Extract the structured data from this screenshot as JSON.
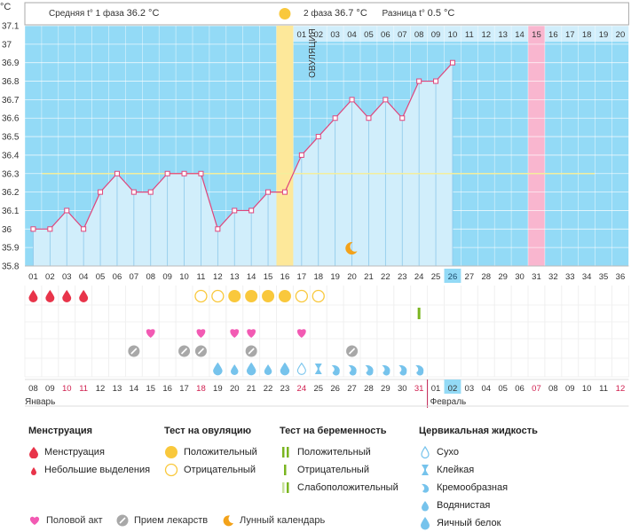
{
  "header": {
    "unit": "°C",
    "phase1_label": "Средняя t° 1 фаза",
    "phase1_value": "36.2 °C",
    "phase2_label": "2 фаза",
    "phase2_value": "36.7 °C",
    "diff_label": "Разница t°",
    "diff_value": "0.5 °C"
  },
  "ovulation_label": "ОВУЛЯЦИЯ",
  "chart_data": {
    "type": "line",
    "xlabel": "",
    "ylabel": "°C",
    "ylim": [
      35.8,
      37.1
    ],
    "y_ticks": [
      "37.1",
      "37",
      "36.9",
      "36.8",
      "36.7",
      "36.6",
      "36.5",
      "36.4",
      "36.3",
      "36.2",
      "36.1",
      "36",
      "35.9",
      "35.8"
    ],
    "cycle_days": [
      "01",
      "02",
      "03",
      "04",
      "05",
      "06",
      "07",
      "08",
      "09",
      "10",
      "11",
      "12",
      "13",
      "14",
      "15",
      "16",
      "17",
      "18",
      "19",
      "20",
      "21",
      "22",
      "23",
      "24",
      "25",
      "26",
      "27",
      "28",
      "29",
      "30",
      "31",
      "32",
      "33",
      "34",
      "35",
      "36"
    ],
    "temperatures": [
      36.0,
      36.0,
      36.1,
      36.0,
      36.2,
      36.3,
      36.2,
      36.2,
      36.3,
      36.3,
      36.3,
      36.0,
      36.1,
      36.1,
      36.2,
      36.2,
      36.4,
      36.5,
      36.6,
      36.7,
      36.6,
      36.7,
      36.6,
      36.8,
      36.8,
      36.9
    ],
    "coverline": 36.3,
    "ovulation_day": 16,
    "current_day": 26,
    "luteal_days": [
      "01",
      "02",
      "03",
      "04",
      "05",
      "06",
      "07",
      "08",
      "09",
      "10",
      "11",
      "12",
      "13",
      "14",
      "15",
      "16",
      "17",
      "18",
      "19",
      "20"
    ],
    "luteal_highlight": "15",
    "dates": [
      "08",
      "09",
      "10",
      "11",
      "12",
      "13",
      "14",
      "15",
      "16",
      "17",
      "18",
      "19",
      "20",
      "21",
      "22",
      "23",
      "24",
      "25",
      "26",
      "27",
      "28",
      "29",
      "30",
      "31",
      "01",
      "02",
      "03",
      "04",
      "05",
      "06",
      "07",
      "08",
      "09",
      "10",
      "11",
      "12"
    ],
    "red_dates": [
      2,
      3,
      10,
      16,
      23,
      30,
      35
    ],
    "highlight_date_index": 25,
    "months": {
      "jan": "Январь",
      "feb": "Февраль"
    },
    "events": {
      "menstruation": [
        1,
        2,
        3,
        4
      ],
      "ovulation_test_positive": [
        13,
        14,
        15,
        16
      ],
      "ovulation_test_negative": [
        11,
        12,
        17,
        18
      ],
      "pregnancy_test": [
        24
      ],
      "intercourse": [
        8,
        11,
        13,
        14,
        17
      ],
      "medication": [
        7,
        10,
        11,
        14,
        20
      ],
      "moon": [
        20
      ],
      "fluid": {
        "12": "egg",
        "13": "water",
        "14": "egg",
        "15": "water",
        "16": "egg",
        "17": "dry",
        "18": "sticky",
        "19": "creamy",
        "20": "creamy",
        "21": "creamy",
        "22": "creamy",
        "23": "creamy",
        "24": "creamy"
      }
    },
    "colors": {
      "plot_bg": "#d1eefb",
      "grid_bg": "#93daf6",
      "line": "#e0457b",
      "ovulation": "#fde89a",
      "highlight": "#f9b6cf",
      "coverline": "#f4ee9c",
      "menstruation": "#e8344a",
      "ovu_pos": "#f9c83c",
      "drop": "#76c3ec",
      "intercourse": "#f25ab3",
      "pill": "#a8a8a8",
      "moon": "#f3a21a",
      "preg": "#7ab520"
    }
  },
  "legend": {
    "menstruation": {
      "title": "Менструация",
      "items": [
        "Менструация",
        "Небольшие выделения"
      ]
    },
    "ovulation_test": {
      "title": "Тест на овуляцию",
      "items": [
        "Положительный",
        "Отрицательный"
      ]
    },
    "pregnancy_test": {
      "title": "Тест на беременность",
      "items": [
        "Положительный",
        "Отрицательный",
        "Слабоположительный"
      ]
    },
    "cervical": {
      "title": "Цервикальная жидкость",
      "items": [
        "Сухо",
        "Клейкая",
        "Кремообразная",
        "Водянистая",
        "Яичный белок"
      ]
    },
    "intercourse": "Половой акт",
    "medication": "Прием лекарств",
    "moon": "Лунный календарь"
  }
}
